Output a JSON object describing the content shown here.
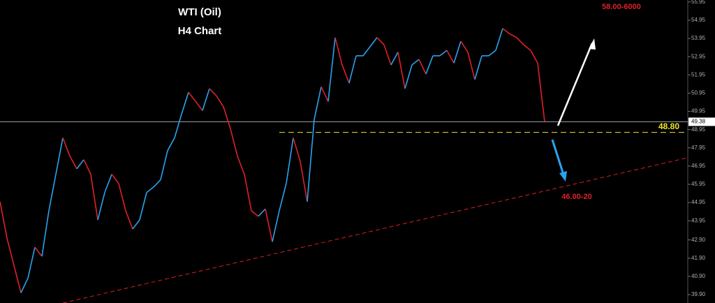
{
  "chart_data": {
    "type": "line",
    "title": "WTI (Oil)",
    "subtitle": "H4 Chart",
    "x": [
      0,
      1,
      2,
      3,
      4,
      5,
      6,
      7,
      8,
      9,
      10,
      11,
      12,
      13,
      14,
      15,
      16,
      17,
      18,
      19,
      20,
      21,
      22,
      23,
      24,
      25,
      26,
      27,
      28,
      29,
      30,
      31,
      32,
      33,
      34,
      35,
      36,
      37,
      38,
      39,
      40,
      41,
      42,
      43,
      44,
      45,
      46,
      47,
      48,
      49,
      50,
      51,
      52,
      53,
      54,
      55,
      56,
      57,
      58,
      59,
      60,
      61,
      62,
      63,
      64,
      65,
      66,
      67,
      68,
      69,
      70,
      71,
      72,
      73,
      74,
      75,
      76,
      77,
      78
    ],
    "series": [
      {
        "values": [
          45.0,
          43.0,
          41.5,
          40.0,
          40.8,
          42.5,
          42.0,
          44.5,
          46.5,
          48.5,
          47.5,
          46.8,
          47.3,
          46.5,
          44.0,
          45.5,
          46.5,
          46.0,
          44.5,
          43.5,
          44.0,
          45.5,
          45.8,
          46.2,
          47.8,
          48.5,
          49.8,
          51.0,
          50.5,
          50.0,
          51.2,
          50.8,
          50.2,
          49.0,
          47.5,
          46.5,
          44.5,
          44.2,
          44.6,
          42.8,
          44.5,
          46.0,
          48.5,
          47.2,
          45.0,
          49.5,
          51.3,
          50.5,
          54.0,
          52.5,
          51.5,
          53.0,
          53.0,
          53.5,
          54.0,
          53.6,
          52.5,
          53.2,
          51.2,
          52.5,
          52.8,
          52.0,
          53.0,
          53.0,
          53.3,
          52.6,
          53.8,
          53.2,
          51.7,
          53.0,
          53.0,
          53.3,
          54.5,
          54.2,
          54.0,
          53.6,
          53.3,
          52.6,
          49.4
        ],
        "up_color": "#29a3f0",
        "down_color": "#e0202a"
      }
    ],
    "xlim": [
      0,
      98.5
    ],
    "ylim": [
      39.44,
      56.06
    ],
    "yticks": [
      55.95,
      54.95,
      53.95,
      52.95,
      51.95,
      50.95,
      49.95,
      48.95,
      47.95,
      46.95,
      45.95,
      44.95,
      43.95,
      {
        "value": 42.9,
        "label": "42.90"
      },
      {
        "value": 41.9,
        "label": "41.90"
      },
      {
        "value": 40.9,
        "label": "40.90"
      },
      {
        "value": 39.9,
        "label": "39.90"
      }
    ],
    "current_price": {
      "value": 49.38,
      "label": "49.38",
      "color": "#9aa4b0"
    },
    "level": {
      "value": 48.8,
      "label": "48.80",
      "color": "#f2e62a"
    },
    "trendline": {
      "x": [
        9,
        98.5
      ],
      "values": [
        39.44,
        47.41
      ],
      "color": "#d8201e"
    },
    "targets": [
      "58.00-6000",
      "46.00-20"
    ]
  }
}
